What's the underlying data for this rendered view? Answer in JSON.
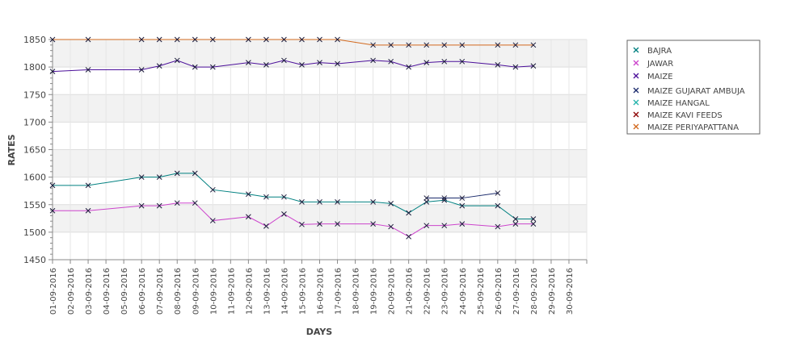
{
  "chart_data": {
    "type": "line",
    "xlabel": "DAYS",
    "ylabel": "RATES",
    "ylim": [
      1450,
      1850
    ],
    "y_ticks": [
      1450,
      1500,
      1550,
      1600,
      1650,
      1700,
      1750,
      1800,
      1850
    ],
    "categories": [
      "01-09-2016",
      "02-09-2016",
      "03-09-2016",
      "04-09-2016",
      "05-09-2016",
      "06-09-2016",
      "07-09-2016",
      "08-09-2016",
      "09-09-2016",
      "10-09-2016",
      "11-09-2016",
      "12-09-2016",
      "13-09-2016",
      "14-09-2016",
      "15-09-2016",
      "16-09-2016",
      "17-09-2016",
      "18-09-2016",
      "19-09-2016",
      "20-09-2016",
      "21-09-2016",
      "22-09-2016",
      "23-09-2016",
      "24-09-2016",
      "25-09-2016",
      "26-09-2016",
      "27-09-2016",
      "28-09-2016",
      "29-09-2016",
      "30-09-2016"
    ],
    "grid": true,
    "legend_position": "right",
    "series": [
      {
        "name": "BAJRA",
        "color": "#008080",
        "values": [
          1585,
          null,
          1585,
          null,
          null,
          1600,
          1600,
          1607,
          1607,
          1577,
          null,
          1569,
          1564,
          1564,
          1555,
          1555,
          1555,
          null,
          1555,
          1552,
          1535,
          1555,
          1558,
          1548,
          null,
          1548,
          1524,
          1524,
          null,
          null
        ]
      },
      {
        "name": "JAWAR",
        "color": "#cc44cc",
        "values": [
          1539,
          null,
          1539,
          null,
          null,
          1548,
          1548,
          1553,
          1553,
          1521,
          null,
          1528,
          1511,
          1533,
          1514,
          1515,
          1515,
          null,
          1515,
          1510,
          1492,
          1512,
          1512,
          1515,
          null,
          1510,
          1515,
          1515,
          null,
          null
        ]
      },
      {
        "name": "MAIZE",
        "color": "#4b0f9a",
        "values": [
          1792,
          null,
          1795,
          null,
          null,
          1795,
          1802,
          1812,
          1800,
          1800,
          null,
          1808,
          1804,
          1812,
          1804,
          1808,
          1806,
          null,
          1812,
          1810,
          1800,
          1808,
          1810,
          1810,
          null,
          1804,
          1800,
          1802,
          null,
          null
        ]
      },
      {
        "name": "MAIZE GUJARAT AMBUJA",
        "color": "#1a2a6c",
        "values": [
          null,
          null,
          null,
          null,
          null,
          null,
          null,
          null,
          null,
          null,
          null,
          null,
          null,
          null,
          null,
          null,
          null,
          null,
          null,
          null,
          null,
          1562,
          1562,
          1562,
          null,
          1571,
          null,
          null,
          null,
          null
        ]
      },
      {
        "name": "MAIZE HANGAL",
        "color": "#20b2aa",
        "values": [
          null,
          null,
          null,
          null,
          null,
          null,
          null,
          null,
          null,
          null,
          null,
          null,
          null,
          null,
          null,
          null,
          null,
          null,
          null,
          null,
          null,
          null,
          null,
          null,
          null,
          null,
          null,
          null,
          null,
          null
        ]
      },
      {
        "name": "MAIZE KAVI FEEDS",
        "color": "#8b0000",
        "values": [
          null,
          null,
          null,
          null,
          null,
          null,
          null,
          null,
          null,
          null,
          null,
          null,
          null,
          null,
          null,
          null,
          null,
          null,
          null,
          null,
          null,
          null,
          null,
          null,
          null,
          null,
          null,
          null,
          null,
          null
        ]
      },
      {
        "name": "MAIZE PERIYAPATTANA",
        "color": "#d2691e",
        "values": [
          1850,
          null,
          1850,
          null,
          null,
          1850,
          1850,
          1850,
          1850,
          1850,
          null,
          1850,
          1850,
          1850,
          1850,
          1850,
          1850,
          null,
          1840,
          1840,
          1840,
          1840,
          1840,
          1840,
          null,
          1840,
          1840,
          1840,
          null,
          null
        ]
      }
    ]
  }
}
